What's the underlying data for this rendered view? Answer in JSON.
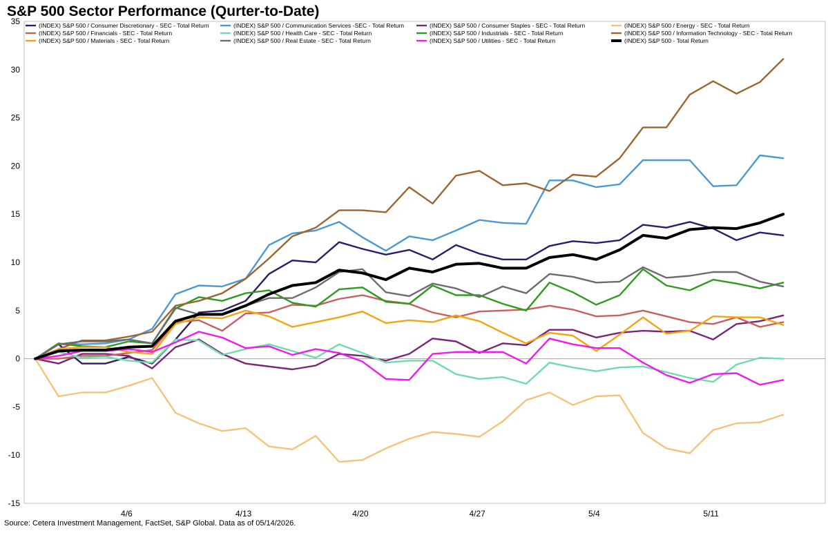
{
  "chart_data": {
    "type": "line",
    "title": "S&P 500 Sector Performance (Qurter-to-Date)",
    "xlabel": "",
    "ylabel": "",
    "ylim": [
      -15,
      35
    ],
    "yticks": [
      -15,
      -10,
      -5,
      0,
      5,
      10,
      15,
      20,
      25,
      30,
      35
    ],
    "x": [
      "3/31",
      "4/1",
      "4/2",
      "4/3",
      "4/6",
      "4/7",
      "4/8",
      "4/9",
      "4/10",
      "4/13",
      "4/14",
      "4/15",
      "4/16",
      "4/17",
      "4/20",
      "4/21",
      "4/22",
      "4/23",
      "4/24",
      "4/27",
      "4/28",
      "4/29",
      "4/30",
      "5/1",
      "5/4",
      "5/5",
      "5/6",
      "5/7",
      "5/8",
      "5/11",
      "5/12",
      "5/13",
      "5/14"
    ],
    "xtick_labels": [
      {
        "index": 4,
        "label": "4/6"
      },
      {
        "index": 9,
        "label": "4/13"
      },
      {
        "index": 14,
        "label": "4/20"
      },
      {
        "index": 19,
        "label": "4/27"
      },
      {
        "index": 24,
        "label": "5/4"
      },
      {
        "index": 29,
        "label": "5/11"
      }
    ],
    "grid": false,
    "legend_position": "top",
    "series": [
      {
        "name": "(INDEX) S&P 500 / Consumer Discretionary - SEC - Total Return",
        "color": "#2e1a6b",
        "emphasis": false,
        "values": [
          0,
          1.5,
          -0.5,
          -0.5,
          0.2,
          -0.5,
          2.0,
          4.8,
          5.0,
          6.0,
          8.8,
          10.2,
          10.0,
          12.1,
          11.4,
          10.8,
          11.3,
          10.3,
          11.8,
          10.9,
          10.3,
          10.3,
          11.7,
          12.2,
          12.0,
          12.3,
          13.9,
          13.6,
          14.2,
          13.5,
          12.3,
          13.1,
          12.8
        ]
      },
      {
        "name": "(INDEX) S&P 500 / Communication Services -SEC - Total Return",
        "color": "#4b98d2",
        "emphasis": false,
        "values": [
          0,
          1.5,
          1.5,
          1.6,
          2.0,
          3.1,
          6.7,
          7.6,
          7.5,
          8.3,
          11.8,
          13.0,
          13.3,
          14.2,
          12.6,
          11.2,
          12.7,
          12.3,
          13.3,
          14.4,
          14.1,
          14.0,
          18.5,
          18.5,
          17.8,
          18.1,
          20.6,
          20.6,
          20.6,
          17.9,
          18.0,
          21.1,
          20.8
        ]
      },
      {
        "name": "(INDEX) S&P 500 / Consumer Staples - SEC - Total Return",
        "color": "#7a2578",
        "emphasis": false,
        "values": [
          0,
          -0.5,
          0.5,
          0.5,
          0.3,
          -1.0,
          1.2,
          2.0,
          0.5,
          -0.5,
          -0.8,
          -1.1,
          -0.7,
          0.5,
          0.3,
          -0.2,
          0.5,
          2.1,
          1.8,
          0.6,
          1.6,
          1.4,
          3.0,
          3.0,
          2.2,
          2.7,
          2.9,
          2.8,
          2.9,
          2.0,
          3.6,
          3.9,
          4.5
        ]
      },
      {
        "name": "(INDEX) S&P 500 / Energy - SEC - Total Return",
        "color": "#f5c27a",
        "emphasis": false,
        "values": [
          0,
          -3.9,
          -3.5,
          -3.5,
          -2.8,
          -2.0,
          -5.6,
          -6.7,
          -7.5,
          -7.2,
          -9.1,
          -9.4,
          -8.0,
          -10.7,
          -10.5,
          -9.3,
          -8.3,
          -7.6,
          -7.8,
          -8.1,
          -6.5,
          -4.3,
          -3.5,
          -4.8,
          -3.9,
          -3.8,
          -7.7,
          -9.3,
          -9.8,
          -7.4,
          -6.7,
          -6.6,
          -5.8
        ]
      },
      {
        "name": "(INDEX) S&P 500 / Financials - SEC - Total Return",
        "color": "#c95f5f",
        "emphasis": false,
        "values": [
          0,
          0.0,
          0.3,
          0.3,
          0.6,
          0.9,
          3.8,
          4.0,
          2.9,
          4.7,
          4.8,
          5.6,
          5.5,
          6.2,
          6.6,
          6.0,
          5.7,
          4.8,
          4.3,
          4.9,
          5.0,
          5.1,
          5.5,
          5.1,
          4.4,
          4.5,
          5.0,
          4.4,
          3.8,
          3.6,
          4.3,
          3.3,
          3.8
        ]
      },
      {
        "name": "(INDEX) S&P 500 / Health Care - SEC - Total Return",
        "color": "#6edbab",
        "emphasis": false,
        "values": [
          0,
          0.7,
          0.1,
          0.2,
          -0.2,
          -0.4,
          2.0,
          1.9,
          0.4,
          1.0,
          1.5,
          0.8,
          0.1,
          1.5,
          0.6,
          -0.4,
          -0.2,
          -0.2,
          -1.6,
          -2.1,
          -1.9,
          -2.6,
          -0.4,
          -0.9,
          -1.3,
          -0.9,
          -0.8,
          -1.4,
          -2.0,
          -2.4,
          -0.6,
          0.1,
          0.0
        ]
      },
      {
        "name": "(INDEX) S&P 500 / Industrials - SEC - Total Return",
        "color": "#2e9b1c",
        "emphasis": false,
        "values": [
          0,
          1.6,
          1.3,
          1.2,
          1.8,
          1.6,
          5.2,
          6.4,
          6.0,
          6.8,
          7.1,
          5.8,
          5.4,
          7.2,
          7.4,
          5.9,
          5.7,
          7.6,
          6.6,
          6.6,
          5.7,
          5.0,
          7.9,
          6.9,
          5.6,
          6.6,
          9.3,
          7.6,
          7.1,
          8.2,
          7.8,
          7.3,
          7.9
        ]
      },
      {
        "name": "(INDEX) S&P 500 / Information Technology - SEC - Total Return",
        "color": "#9b6531",
        "emphasis": false,
        "values": [
          0,
          1.0,
          1.9,
          1.9,
          2.3,
          2.8,
          5.5,
          6.0,
          6.8,
          8.3,
          10.4,
          12.7,
          13.6,
          15.4,
          15.4,
          15.2,
          17.8,
          16.1,
          19.0,
          19.5,
          18.0,
          18.2,
          17.4,
          19.1,
          18.9,
          20.8,
          24.0,
          24.0,
          27.4,
          28.8,
          27.5,
          28.7,
          31.1
        ]
      },
      {
        "name": "(INDEX) S&P 500 / Materials - SEC - Total Return",
        "color": "#f5a310",
        "emphasis": false,
        "values": [
          0,
          1.0,
          1.2,
          1.2,
          0.7,
          0.5,
          3.6,
          4.3,
          4.2,
          5.0,
          4.4,
          3.3,
          3.8,
          4.3,
          4.9,
          3.7,
          4.0,
          3.8,
          4.5,
          3.9,
          2.7,
          1.6,
          2.7,
          2.4,
          0.8,
          2.5,
          4.3,
          2.6,
          2.9,
          4.4,
          4.3,
          4.3,
          3.5
        ]
      },
      {
        "name": "(INDEX) S&P 500 / Real Estate - SEC - Total Return",
        "color": "#6b6b6b",
        "emphasis": false,
        "values": [
          0,
          1.5,
          1.8,
          1.8,
          2.0,
          1.6,
          5.3,
          4.6,
          4.6,
          5.5,
          6.3,
          6.3,
          7.4,
          9.0,
          9.3,
          6.9,
          6.5,
          7.8,
          7.3,
          6.4,
          7.5,
          6.8,
          8.8,
          8.5,
          7.9,
          8.0,
          9.5,
          8.4,
          8.6,
          9.0,
          9.0,
          8.0,
          7.5
        ]
      },
      {
        "name": "(INDEX) S&P 500 / Utilities - SEC - Total Return",
        "color": "#f218ee",
        "emphasis": false,
        "values": [
          0,
          0.3,
          0.8,
          0.8,
          1.0,
          0.7,
          1.7,
          2.8,
          2.2,
          1.1,
          1.3,
          0.4,
          1.0,
          0.6,
          -0.3,
          -2.1,
          -2.2,
          0.5,
          0.7,
          0.7,
          0.7,
          -0.5,
          2.1,
          1.5,
          1.1,
          1.1,
          -0.4,
          -1.7,
          -2.5,
          -1.6,
          -1.5,
          -2.7,
          -2.2
        ]
      },
      {
        "name": "(INDEX) S&P 500 - Total Return",
        "color": "#000000",
        "emphasis": true,
        "values": [
          0,
          0.8,
          0.9,
          0.9,
          1.2,
          1.3,
          3.9,
          4.6,
          4.6,
          5.5,
          6.7,
          7.6,
          7.9,
          9.2,
          8.9,
          8.2,
          9.4,
          9.0,
          9.8,
          9.9,
          9.4,
          9.4,
          10.5,
          10.8,
          10.3,
          11.3,
          12.8,
          12.5,
          13.4,
          13.6,
          13.5,
          14.1,
          15.0
        ]
      }
    ],
    "source": "Source: Cetera Investment Management, FactSet, S&P Global. Data as of 05/14/2026."
  }
}
